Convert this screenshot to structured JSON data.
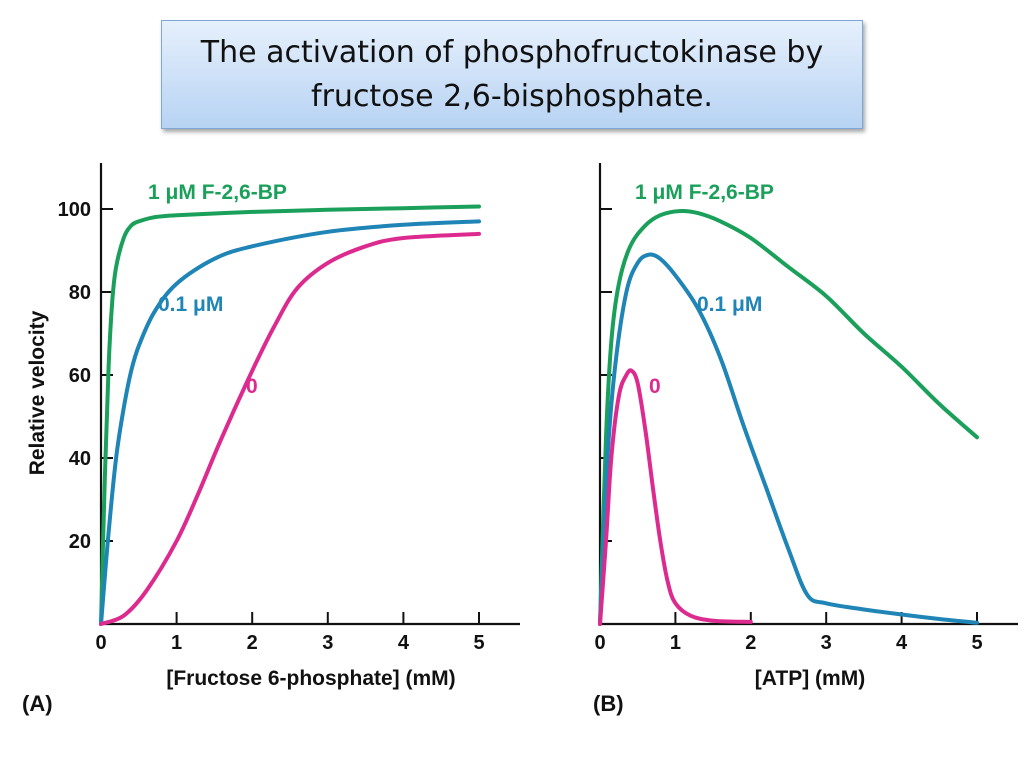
{
  "title": {
    "line1": "The activation of phosphofructokinase by",
    "line2": "fructose 2,6-bisphosphate."
  },
  "colors": {
    "green": "#1aa05a",
    "blue": "#1f84b6",
    "magenta": "#dd2a8e",
    "axis": "#111111"
  },
  "chart_data": [
    {
      "panel": "(A)",
      "type": "line",
      "xlabel": "[Fructose 6-phosphate] (mM)",
      "ylabel": "Relative velocity",
      "xlim": [
        0,
        5.5
      ],
      "ylim": [
        0,
        110
      ],
      "xticks": [
        0,
        1,
        2,
        3,
        4,
        5
      ],
      "yticks": [
        20,
        40,
        60,
        80,
        100
      ],
      "series": [
        {
          "name": "1 μM F-2,6-BP",
          "color": "#1aa05a",
          "points": [
            [
              0,
              0
            ],
            [
              0.05,
              35
            ],
            [
              0.1,
              62
            ],
            [
              0.15,
              78
            ],
            [
              0.2,
              86
            ],
            [
              0.3,
              93
            ],
            [
              0.4,
              96
            ],
            [
              0.5,
              97
            ],
            [
              0.7,
              98
            ],
            [
              1,
              98.5
            ],
            [
              2,
              99.3
            ],
            [
              3,
              99.8
            ],
            [
              4,
              100.2
            ],
            [
              5,
              100.6
            ]
          ]
        },
        {
          "name": "0.1 μM",
          "color": "#1f84b6",
          "points": [
            [
              0,
              0
            ],
            [
              0.1,
              22
            ],
            [
              0.2,
              40
            ],
            [
              0.3,
              52
            ],
            [
              0.4,
              61
            ],
            [
              0.5,
              67
            ],
            [
              0.7,
              75
            ],
            [
              1,
              82
            ],
            [
              1.5,
              88
            ],
            [
              2,
              91
            ],
            [
              3,
              94.5
            ],
            [
              4,
              96.2
            ],
            [
              5,
              97
            ]
          ]
        },
        {
          "name": "0",
          "color": "#dd2a8e",
          "points": [
            [
              0,
              0
            ],
            [
              0.3,
              2
            ],
            [
              0.6,
              8
            ],
            [
              1,
              20
            ],
            [
              1.3,
              32
            ],
            [
              1.6,
              45
            ],
            [
              2,
              61
            ],
            [
              2.3,
              72
            ],
            [
              2.6,
              81
            ],
            [
              3,
              87
            ],
            [
              3.5,
              91
            ],
            [
              4,
              93
            ],
            [
              5,
              94
            ]
          ]
        }
      ]
    },
    {
      "panel": "(B)",
      "type": "line",
      "xlabel": "[ATP] (mM)",
      "ylabel": "",
      "xlim": [
        0,
        5.5
      ],
      "ylim": [
        0,
        110
      ],
      "xticks": [
        0,
        1,
        2,
        3,
        4,
        5
      ],
      "yticks": [
        20,
        40,
        60,
        80,
        100
      ],
      "series": [
        {
          "name": "1 μM F-2,6-BP",
          "color": "#1aa05a",
          "points": [
            [
              0,
              0
            ],
            [
              0.08,
              45
            ],
            [
              0.15,
              68
            ],
            [
              0.25,
              82
            ],
            [
              0.4,
              91
            ],
            [
              0.6,
              96
            ],
            [
              0.8,
              98.5
            ],
            [
              1.05,
              99.5
            ],
            [
              1.3,
              99
            ],
            [
              1.6,
              97
            ],
            [
              2,
              93
            ],
            [
              2.5,
              86
            ],
            [
              3,
              79
            ],
            [
              3.5,
              70
            ],
            [
              4,
              62
            ],
            [
              4.5,
              53
            ],
            [
              5,
              45
            ]
          ]
        },
        {
          "name": "0.1 μM",
          "color": "#1f84b6",
          "points": [
            [
              0,
              0
            ],
            [
              0.1,
              40
            ],
            [
              0.2,
              62
            ],
            [
              0.35,
              80
            ],
            [
              0.5,
              87
            ],
            [
              0.65,
              89
            ],
            [
              0.8,
              88
            ],
            [
              1,
              84
            ],
            [
              1.3,
              76
            ],
            [
              1.6,
              64
            ],
            [
              1.9,
              48
            ],
            [
              2.2,
              33
            ],
            [
              2.5,
              18
            ],
            [
              2.75,
              7
            ],
            [
              3,
              5
            ],
            [
              3.5,
              3.5
            ],
            [
              4,
              2.3
            ],
            [
              4.5,
              1.2
            ],
            [
              5,
              0.3
            ]
          ]
        },
        {
          "name": "0",
          "color": "#dd2a8e",
          "points": [
            [
              0,
              0
            ],
            [
              0.08,
              20
            ],
            [
              0.15,
              40
            ],
            [
              0.25,
              55
            ],
            [
              0.35,
              60
            ],
            [
              0.42,
              61
            ],
            [
              0.5,
              58
            ],
            [
              0.6,
              47
            ],
            [
              0.7,
              33
            ],
            [
              0.8,
              20
            ],
            [
              0.9,
              10
            ],
            [
              1,
              5
            ],
            [
              1.2,
              2
            ],
            [
              1.5,
              0.8
            ],
            [
              2,
              0.5
            ]
          ]
        }
      ]
    }
  ]
}
